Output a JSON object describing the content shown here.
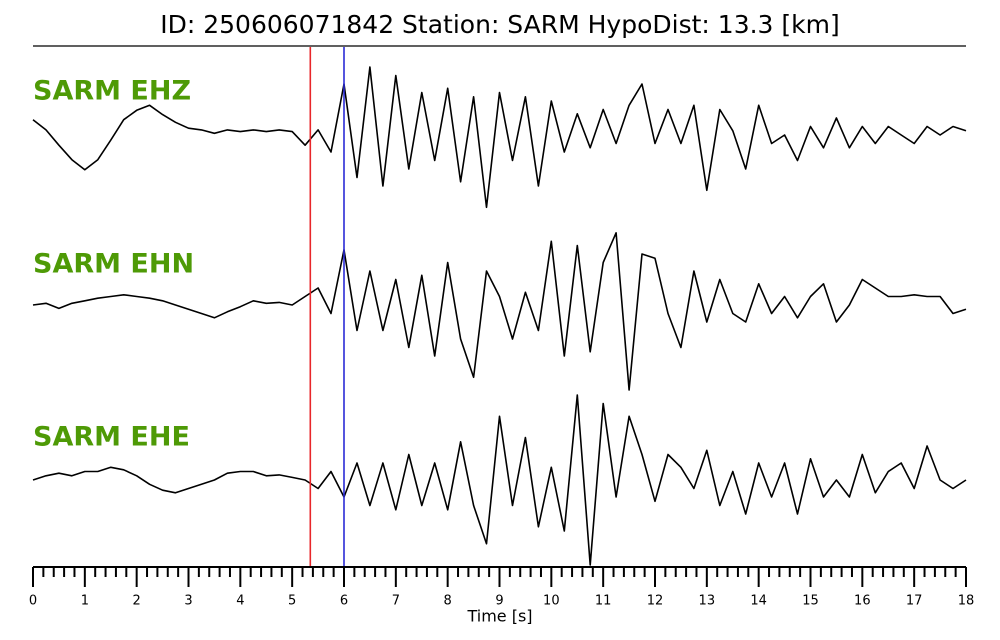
{
  "chart_data": {
    "type": "line",
    "title": "ID: 250606071842   Station: SARM   HypoDist:    13.3 [km]",
    "xlabel": "Time [s]",
    "x": [
      0,
      0.25,
      0.5,
      0.75,
      1,
      1.25,
      1.5,
      1.75,
      2,
      2.25,
      2.5,
      2.75,
      3,
      3.25,
      3.5,
      3.75,
      4,
      4.25,
      4.5,
      4.75,
      5,
      5.25,
      5.5,
      5.75,
      6,
      6.25,
      6.5,
      6.75,
      7,
      7.25,
      7.5,
      7.75,
      8,
      8.25,
      8.5,
      8.75,
      9,
      9.25,
      9.5,
      9.75,
      10,
      10.25,
      10.5,
      10.75,
      11,
      11.25,
      11.5,
      11.75,
      12,
      12.25,
      12.5,
      12.75,
      13,
      13.25,
      13.5,
      13.75,
      14,
      14.25,
      14.5,
      14.75,
      15,
      15.25,
      15.5,
      15.75,
      16,
      16.25,
      16.5,
      16.75,
      17,
      17.25,
      17.5,
      17.75,
      18
    ],
    "series": [
      {
        "name": "SARM EHZ",
        "color": "#000000",
        "values": [
          0.18,
          0.06,
          -0.12,
          -0.29,
          -0.41,
          -0.29,
          -0.06,
          0.18,
          0.29,
          0.35,
          0.24,
          0.15,
          0.08,
          0.06,
          0.02,
          0.06,
          0.04,
          0.06,
          0.04,
          0.06,
          0.04,
          -0.12,
          0.06,
          -0.2,
          0.6,
          -0.5,
          0.8,
          -0.6,
          0.7,
          -0.4,
          0.5,
          -0.3,
          0.55,
          -0.55,
          0.45,
          -0.85,
          0.5,
          -0.3,
          0.45,
          -0.6,
          0.4,
          -0.2,
          0.25,
          -0.15,
          0.3,
          -0.1,
          0.35,
          0.6,
          -0.1,
          0.3,
          -0.1,
          0.35,
          -0.65,
          0.3,
          0.05,
          -0.4,
          0.35,
          -0.1,
          0.0,
          -0.3,
          0.1,
          -0.15,
          0.2,
          -0.15,
          0.1,
          -0.1,
          0.1,
          0.0,
          -0.1,
          0.1,
          0.0,
          0.1,
          0.05
        ]
      },
      {
        "name": "SARM EHN",
        "color": "#000000",
        "values": [
          0.0,
          0.02,
          -0.04,
          0.02,
          0.05,
          0.08,
          0.1,
          0.12,
          0.1,
          0.08,
          0.05,
          0.0,
          -0.05,
          -0.1,
          -0.15,
          -0.08,
          -0.02,
          0.05,
          0.02,
          0.03,
          0.0,
          0.1,
          0.2,
          -0.1,
          0.65,
          -0.3,
          0.4,
          -0.3,
          0.3,
          -0.5,
          0.35,
          -0.6,
          0.5,
          -0.4,
          -0.85,
          0.4,
          0.1,
          -0.4,
          0.15,
          -0.3,
          0.75,
          -0.6,
          0.7,
          -0.55,
          0.5,
          0.85,
          -1.0,
          0.6,
          0.55,
          -0.1,
          -0.5,
          0.4,
          -0.2,
          0.3,
          -0.1,
          -0.2,
          0.25,
          -0.1,
          0.1,
          -0.15,
          0.1,
          0.25,
          -0.2,
          0.0,
          0.3,
          0.2,
          0.1,
          0.1,
          0.12,
          0.1,
          0.1,
          -0.1,
          -0.05
        ]
      },
      {
        "name": "SARM EHE",
        "color": "#000000",
        "values": [
          0.0,
          0.05,
          0.08,
          0.05,
          0.1,
          0.1,
          0.15,
          0.12,
          0.05,
          -0.05,
          -0.12,
          -0.15,
          -0.1,
          -0.05,
          0.0,
          0.08,
          0.1,
          0.1,
          0.05,
          0.06,
          0.03,
          0.0,
          -0.1,
          0.1,
          -0.2,
          0.2,
          -0.3,
          0.2,
          -0.35,
          0.3,
          -0.3,
          0.2,
          -0.35,
          0.45,
          -0.3,
          -0.75,
          0.75,
          -0.3,
          0.5,
          -0.55,
          0.15,
          -0.6,
          1.0,
          -1.0,
          0.9,
          -0.2,
          0.75,
          0.3,
          -0.25,
          0.3,
          0.15,
          -0.1,
          0.35,
          -0.3,
          0.1,
          -0.4,
          0.2,
          -0.2,
          0.2,
          -0.4,
          0.25,
          -0.2,
          0.0,
          -0.2,
          0.3,
          -0.15,
          0.1,
          0.2,
          -0.1,
          0.4,
          0.0,
          -0.1,
          0.0
        ]
      }
    ],
    "label_color": "#4e9a06",
    "picks": [
      {
        "time": 5.35,
        "color": "#e8262a"
      },
      {
        "time": 6.0,
        "color": "#2b2bd6"
      }
    ],
    "xlim": [
      0,
      18
    ],
    "xticks": [
      0,
      1,
      2,
      3,
      4,
      5,
      6,
      7,
      8,
      9,
      10,
      11,
      12,
      13,
      14,
      15,
      16,
      17,
      18
    ],
    "xminorticks": [
      0.2,
      0.4,
      0.6,
      0.8,
      1.2,
      1.4,
      1.6,
      1.8,
      2.2,
      2.4,
      2.6,
      2.8,
      3.2,
      3.4,
      3.6,
      3.8,
      4.2,
      4.4,
      4.6,
      4.8,
      5.2,
      5.4,
      5.6,
      5.8,
      6.2,
      6.4,
      6.6,
      6.8,
      7.2,
      7.4,
      7.6,
      7.8,
      8.2,
      8.4,
      8.6,
      8.8,
      9.2,
      9.4,
      9.6,
      9.8,
      10.2,
      10.4,
      10.6,
      10.8,
      11.2,
      11.4,
      11.6,
      11.8,
      12.2,
      12.4,
      12.6,
      12.8,
      13.2,
      13.4,
      13.6,
      13.8,
      14.2,
      14.4,
      14.6,
      14.8,
      15.2,
      15.4,
      15.6,
      15.8,
      16.2,
      16.4,
      16.6,
      16.8,
      17.2,
      17.4,
      17.6,
      17.8
    ]
  }
}
